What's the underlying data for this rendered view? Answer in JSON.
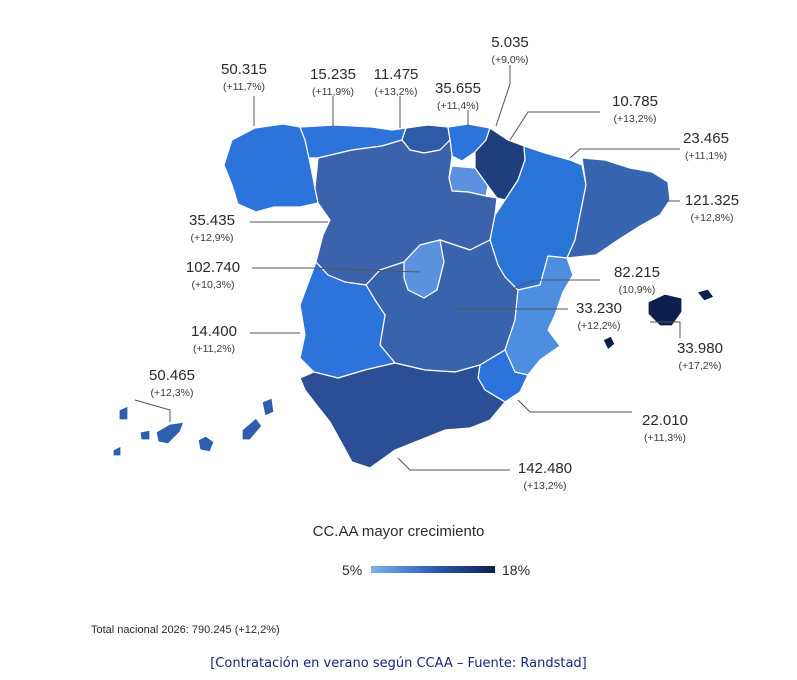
{
  "legend": {
    "title": "CC.AA mayor crecimiento",
    "min": "5%",
    "max": "18%",
    "colors": [
      "#7fb0ee",
      "#2e5db2",
      "#0d1f4e"
    ]
  },
  "total": "Total nacional 2026: 790.245 (+12,2%)",
  "caption": "[Contratación en verano según CCAA – Fuente: Randstad]",
  "regions": {
    "galicia": {
      "value": "50.315",
      "pct": "(+11,7%)",
      "color": "#2c74dc"
    },
    "asturias": {
      "value": "15.235",
      "pct": "(+11,9%)",
      "color": "#2c74dc"
    },
    "cantabria": {
      "value": "11.475",
      "pct": "(+13,2%)",
      "color": "#2e5ba8"
    },
    "pais_vasco": {
      "value": "35.655",
      "pct": "(+11,4%)",
      "color": "#2c74dc"
    },
    "la_rioja": {
      "value": "5.035",
      "pct": "(+9,0%)",
      "color": "#5b91de"
    },
    "navarra": {
      "value": "10.785",
      "pct": "(+13,2%)",
      "color": "#1e3f7c"
    },
    "aragon": {
      "value": "23.465",
      "pct": "(+11,1%)",
      "color": "#2a74d8"
    },
    "cataluna": {
      "value": "121.325",
      "pct": "(+12,8%)",
      "color": "#3764b0"
    },
    "castilla_leon": {
      "value": "35.435",
      "pct": "(+12,9%)",
      "color": "#3c62ab"
    },
    "madrid": {
      "value": "102.740",
      "pct": "(+10,3%)",
      "color": "#5b92e0"
    },
    "extremadura": {
      "value": "14.400",
      "pct": "(+11,2%)",
      "color": "#2c74dc"
    },
    "valencia": {
      "value": "82.215",
      "pct": "(10,9%)",
      "color": "#4d8ee0"
    },
    "castilla_la_mancha": {
      "value": "33.230",
      "pct": "(+12,2%)",
      "color": "#3864ae"
    },
    "baleares": {
      "value": "33.980",
      "pct": "(+17,2%)",
      "color": "#0d1f4e"
    },
    "canarias": {
      "value": "50.465",
      "pct": "(+12,3%)",
      "color": "#2e5fae"
    },
    "murcia": {
      "value": "22.010",
      "pct": "(+11,3%)",
      "color": "#2c74dc"
    },
    "andalucia": {
      "value": "142.480",
      "pct": "(+13,2%)",
      "color": "#2b4e94"
    }
  }
}
